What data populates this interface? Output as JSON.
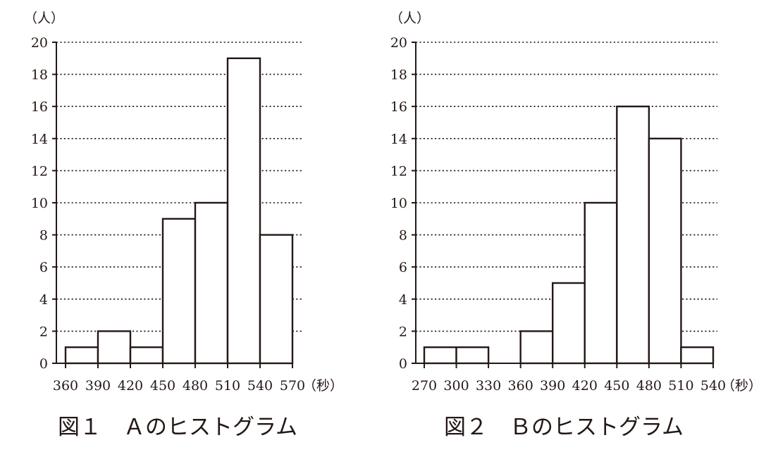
{
  "chart_data": [
    {
      "type": "bar",
      "title": "図１　Ａのヒストグラム",
      "xlabel": "（秒）",
      "ylabel": "（人）",
      "xlim": [
        360,
        570
      ],
      "ylim": [
        0,
        20
      ],
      "y_ticks": [
        0,
        2,
        4,
        6,
        8,
        10,
        12,
        14,
        16,
        18,
        20
      ],
      "x_ticks": [
        360,
        390,
        420,
        450,
        480,
        510,
        540,
        570
      ],
      "grid": true,
      "bins": [
        {
          "from": 360,
          "to": 390,
          "value": 1
        },
        {
          "from": 390,
          "to": 420,
          "value": 2
        },
        {
          "from": 420,
          "to": 450,
          "value": 1
        },
        {
          "from": 450,
          "to": 480,
          "value": 9
        },
        {
          "from": 480,
          "to": 510,
          "value": 10
        },
        {
          "from": 510,
          "to": 540,
          "value": 19
        },
        {
          "from": 540,
          "to": 570,
          "value": 8
        }
      ]
    },
    {
      "type": "bar",
      "title": "図２　Ｂのヒストグラム",
      "xlabel": "（秒）",
      "ylabel": "（人）",
      "xlim": [
        270,
        540
      ],
      "ylim": [
        0,
        20
      ],
      "y_ticks": [
        0,
        2,
        4,
        6,
        8,
        10,
        12,
        14,
        16,
        18,
        20
      ],
      "x_ticks": [
        270,
        300,
        330,
        360,
        390,
        420,
        450,
        480,
        510,
        540
      ],
      "grid": true,
      "bins": [
        {
          "from": 270,
          "to": 300,
          "value": 1
        },
        {
          "from": 300,
          "to": 330,
          "value": 1
        },
        {
          "from": 330,
          "to": 360,
          "value": 0
        },
        {
          "from": 360,
          "to": 390,
          "value": 2
        },
        {
          "from": 390,
          "to": 420,
          "value": 5
        },
        {
          "from": 420,
          "to": 450,
          "value": 10
        },
        {
          "from": 450,
          "to": 480,
          "value": 16
        },
        {
          "from": 480,
          "to": 510,
          "value": 14
        },
        {
          "from": 510,
          "to": 540,
          "value": 1
        }
      ]
    }
  ]
}
